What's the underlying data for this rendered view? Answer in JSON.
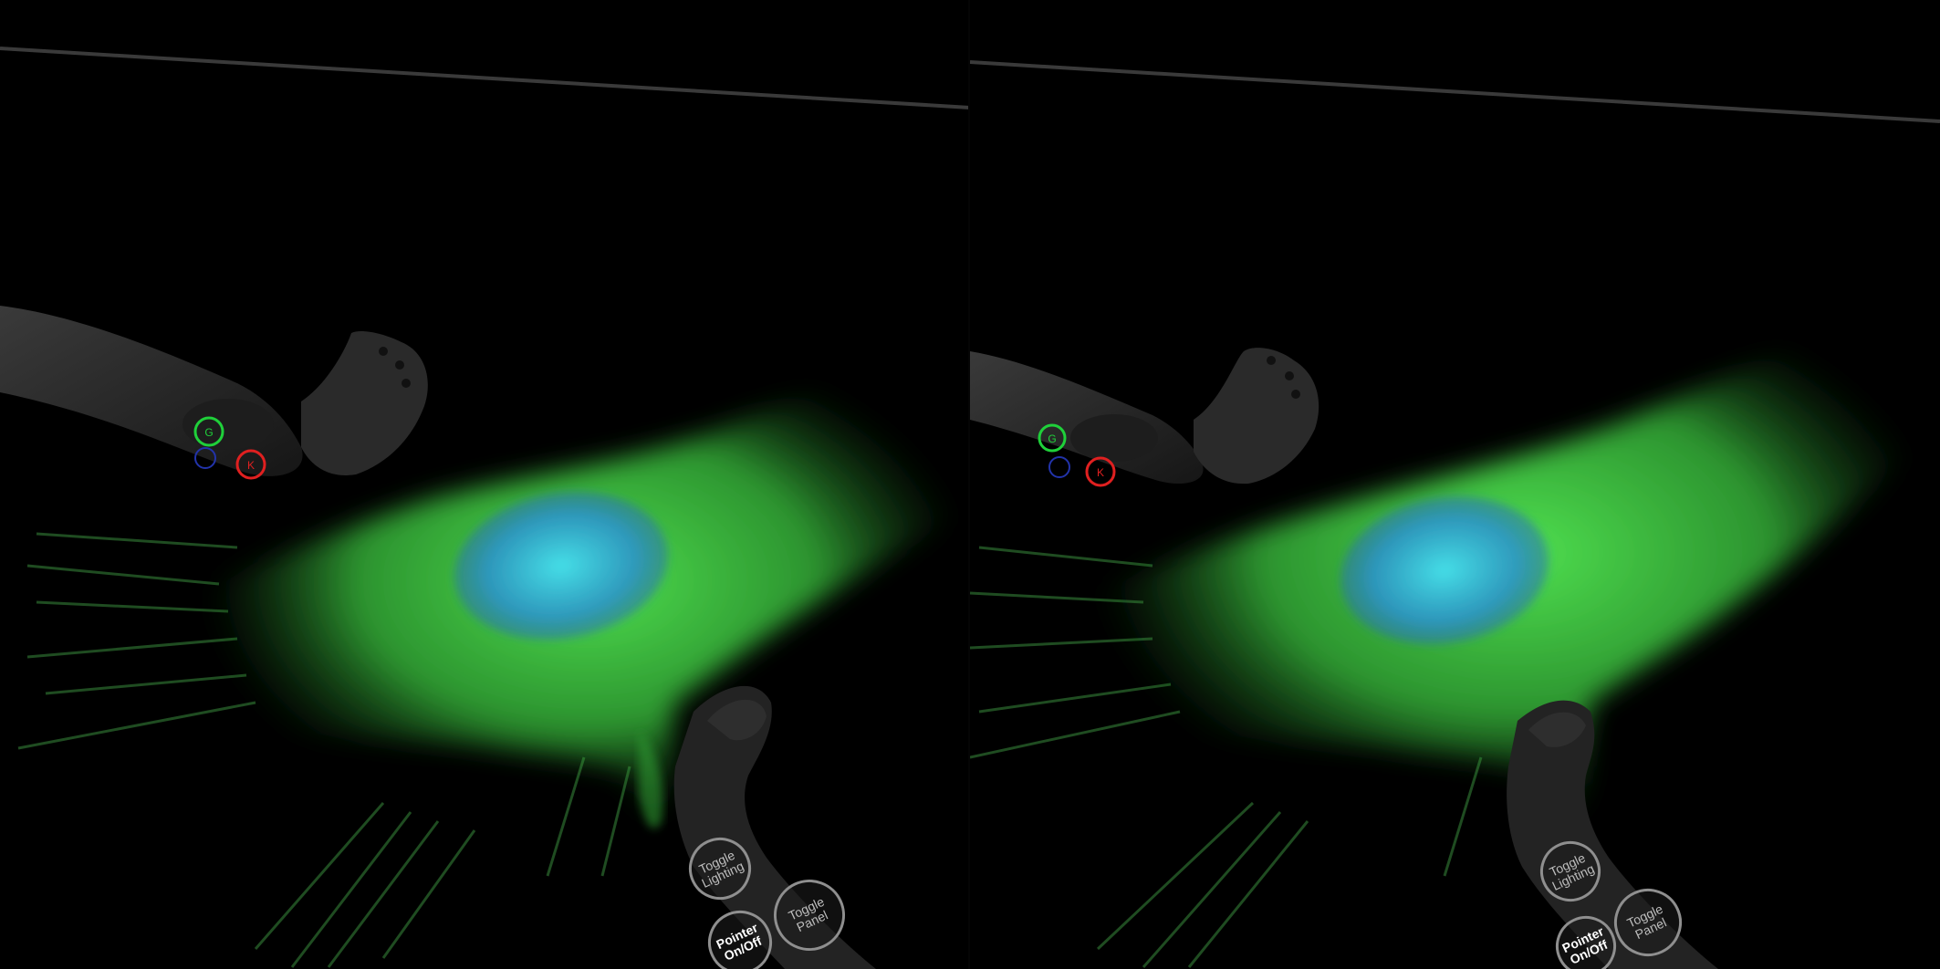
{
  "scene": {
    "mode": "stereo VR view",
    "colors": {
      "background": "#000000",
      "cytoplasm": "#3fe04a",
      "nucleus": "#2fb8e8",
      "controller_body": "#2a2a2a",
      "button_ring": "#8f8f8f",
      "grip_button": "#1fd03a",
      "menu_button": "#2233aa",
      "system_button": "#e02020"
    }
  },
  "left_eye": {
    "menu": {
      "toggle_lighting": "Toggle Lighting",
      "toggle_panel": "Toggle Panel",
      "pointer_on_off": "Pointer On/Off"
    }
  },
  "right_eye": {
    "menu": {
      "toggle_lighting": "Toggle Lighting",
      "toggle_panel": "Toggle Panel",
      "pointer_on_off": "Pointer On/Off"
    }
  },
  "icons": {
    "controller_grip": "grip-icon",
    "controller_menu": "menu-icon",
    "controller_system": "system-icon"
  }
}
